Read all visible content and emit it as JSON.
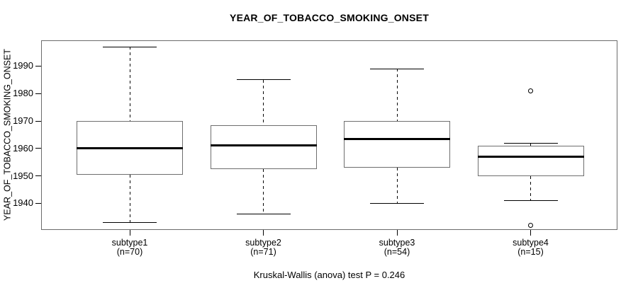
{
  "chart_data": {
    "type": "boxplot",
    "title": "YEAR_OF_TOBACCO_SMOKING_ONSET",
    "ylabel": "YEAR_OF_TOBACCO_SMOKING_ONSET",
    "xlabel": "",
    "caption": "Kruskal-Wallis (anova) test P = 0.246",
    "y_ticks": [
      1940,
      1950,
      1960,
      1970,
      1980,
      1990
    ],
    "ylim": [
      1930.3,
      1999.4
    ],
    "grid": false,
    "line_color": "#000000",
    "background_color": "#ffffff",
    "groups": [
      {
        "label": "subtype1",
        "n_label": "(n=70)",
        "n": 70,
        "whisker_low": 1933,
        "q1": 1950.5,
        "median": 1960,
        "q3": 1970,
        "whisker_high": 1997,
        "outliers": []
      },
      {
        "label": "subtype2",
        "n_label": "(n=71)",
        "n": 71,
        "whisker_low": 1936,
        "q1": 1952.5,
        "median": 1961,
        "q3": 1968.5,
        "whisker_high": 1985,
        "outliers": []
      },
      {
        "label": "subtype3",
        "n_label": "(n=54)",
        "n": 54,
        "whisker_low": 1940,
        "q1": 1953,
        "median": 1963.5,
        "q3": 1970,
        "whisker_high": 1989,
        "outliers": []
      },
      {
        "label": "subtype4",
        "n_label": "(n=15)",
        "n": 15,
        "whisker_low": 1941,
        "q1": 1950,
        "median": 1957,
        "q3": 1961,
        "whisker_high": 1962,
        "outliers": [
          1981,
          1932
        ]
      }
    ]
  }
}
